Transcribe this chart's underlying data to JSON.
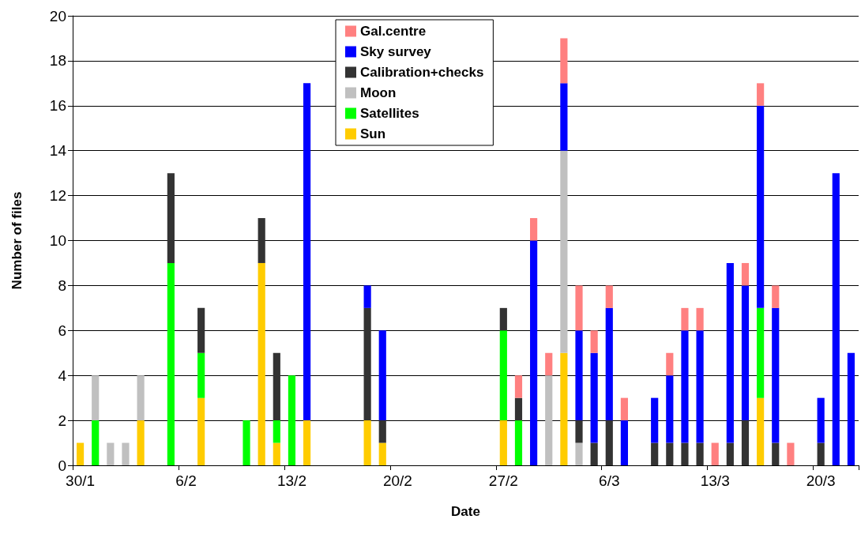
{
  "chart_data": {
    "type": "bar",
    "stacked": true,
    "xlabel": "Date",
    "ylabel": "Number of files",
    "categories": [
      "30/1",
      null,
      null,
      null,
      null,
      null,
      null,
      "6/2",
      null,
      null,
      null,
      null,
      null,
      null,
      "13/2",
      null,
      null,
      null,
      null,
      null,
      null,
      "20/2",
      null,
      null,
      null,
      null,
      null,
      null,
      "27/2",
      null,
      null,
      null,
      null,
      null,
      null,
      "6/3",
      null,
      null,
      null,
      null,
      null,
      null,
      "13/3",
      null,
      null,
      null,
      null,
      null,
      null,
      "20/3",
      null,
      null
    ],
    "series": [
      {
        "name": "Sun",
        "color": "#ffcc00",
        "values": [
          1,
          null,
          null,
          null,
          2,
          null,
          null,
          null,
          3,
          null,
          null,
          null,
          9,
          1,
          null,
          2,
          null,
          null,
          null,
          2,
          1,
          null,
          null,
          null,
          null,
          null,
          null,
          null,
          2,
          null,
          null,
          null,
          5,
          null,
          null,
          null,
          null,
          null,
          null,
          null,
          null,
          null,
          null,
          null,
          null,
          3,
          null,
          null,
          null,
          null,
          null,
          null
        ]
      },
      {
        "name": "Satellites",
        "color": "#00ff00",
        "values": [
          null,
          2,
          null,
          null,
          null,
          null,
          9,
          null,
          2,
          null,
          null,
          2,
          null,
          1,
          4,
          null,
          null,
          null,
          null,
          null,
          null,
          null,
          null,
          null,
          null,
          null,
          null,
          null,
          4,
          2,
          null,
          null,
          null,
          null,
          null,
          null,
          null,
          null,
          null,
          null,
          null,
          null,
          null,
          null,
          null,
          4,
          null,
          null,
          null,
          null,
          null,
          null
        ]
      },
      {
        "name": "Moon",
        "color": "#c0c0c0",
        "values": [
          null,
          2,
          1,
          1,
          2,
          null,
          null,
          null,
          null,
          null,
          null,
          null,
          null,
          null,
          null,
          null,
          null,
          null,
          null,
          null,
          null,
          null,
          null,
          null,
          null,
          null,
          null,
          null,
          null,
          null,
          null,
          4,
          9,
          1,
          null,
          null,
          null,
          null,
          null,
          null,
          null,
          null,
          null,
          null,
          null,
          null,
          null,
          null,
          null,
          null,
          null,
          null
        ]
      },
      {
        "name": "Calibration+checks",
        "color": "#333333",
        "values": [
          null,
          null,
          null,
          null,
          null,
          null,
          4,
          null,
          2,
          null,
          null,
          null,
          2,
          3,
          null,
          null,
          null,
          null,
          null,
          5,
          1,
          null,
          null,
          null,
          null,
          null,
          null,
          null,
          1,
          1,
          null,
          null,
          null,
          1,
          1,
          2,
          null,
          null,
          1,
          1,
          1,
          1,
          null,
          1,
          2,
          null,
          1,
          null,
          null,
          1,
          null,
          null
        ]
      },
      {
        "name": "Sky survey",
        "color": "#0000ff",
        "values": [
          null,
          null,
          null,
          null,
          null,
          null,
          null,
          null,
          null,
          null,
          null,
          null,
          null,
          null,
          null,
          15,
          null,
          null,
          null,
          1,
          4,
          null,
          null,
          null,
          null,
          null,
          null,
          null,
          null,
          null,
          10,
          null,
          3,
          4,
          4,
          5,
          2,
          null,
          2,
          3,
          5,
          5,
          null,
          8,
          6,
          9,
          6,
          null,
          null,
          2,
          13,
          5
        ]
      },
      {
        "name": "Gal.centre",
        "color": "#ff8080",
        "values": [
          null,
          null,
          null,
          null,
          null,
          null,
          null,
          null,
          null,
          null,
          null,
          null,
          null,
          null,
          null,
          null,
          null,
          null,
          null,
          null,
          null,
          null,
          null,
          null,
          null,
          null,
          null,
          null,
          null,
          1,
          1,
          1,
          2,
          2,
          1,
          1,
          1,
          null,
          null,
          1,
          1,
          1,
          1,
          null,
          1,
          1,
          1,
          1,
          null,
          null,
          null,
          null
        ]
      }
    ],
    "ylim": [
      0,
      20
    ],
    "yticks": [
      0,
      2,
      4,
      6,
      8,
      10,
      12,
      14,
      16,
      18,
      20
    ],
    "grid": "y",
    "legend": "top"
  }
}
